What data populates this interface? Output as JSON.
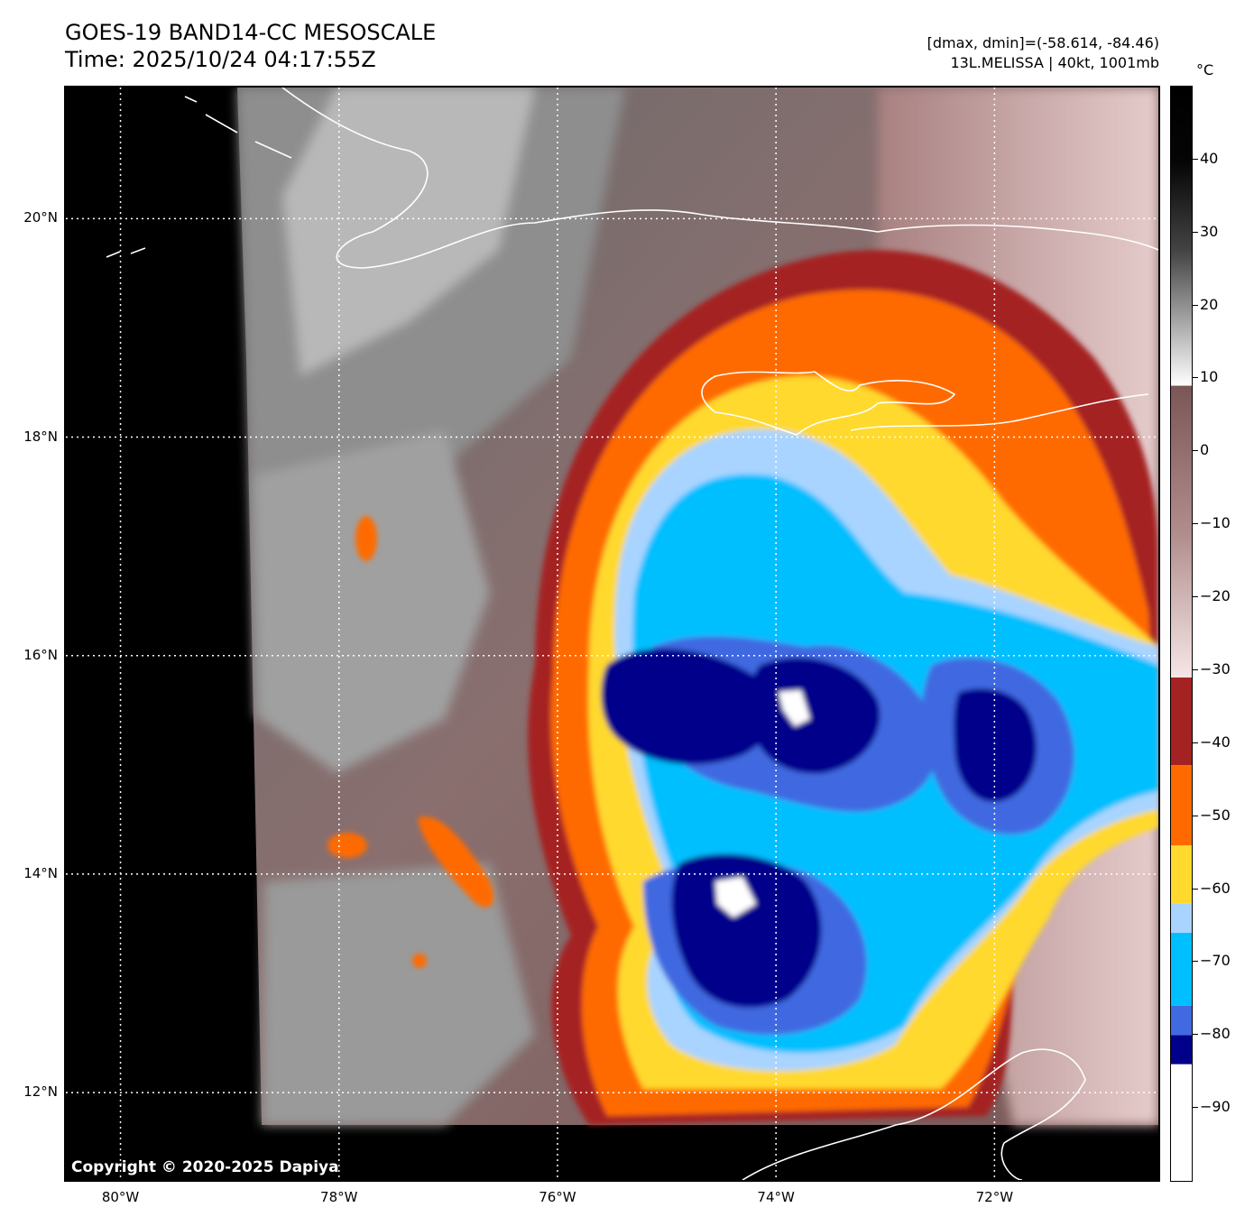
{
  "header": {
    "title_line1": "GOES-19 BAND14-CC MESOSCALE",
    "title_line2": "Time: 2025/10/24 04:17:55Z",
    "info_line1": "[dmax, dmin]=(-58.614, -84.46)",
    "info_line2": "13L.MELISSA | 40kt, 1001mb"
  },
  "map": {
    "lon_range": [
      -80.5,
      -70.5
    ],
    "lat_range": [
      11.2,
      21.2
    ],
    "lat_ticks": [
      {
        "value": 20,
        "label": "20°N"
      },
      {
        "value": 18,
        "label": "18°N"
      },
      {
        "value": 16,
        "label": "16°N"
      },
      {
        "value": 14,
        "label": "14°N"
      },
      {
        "value": 12,
        "label": "12°N"
      }
    ],
    "lon_ticks": [
      {
        "value": -80,
        "label": "80°W"
      },
      {
        "value": -78,
        "label": "78°W"
      },
      {
        "value": -76,
        "label": "76°W"
      },
      {
        "value": -74,
        "label": "74°W"
      },
      {
        "value": -72,
        "label": "72°W"
      }
    ],
    "gridlines": "dotted white",
    "copyright": "Copyright © 2020-2025 Dapiya"
  },
  "colorbar": {
    "unit": "°C",
    "range": [
      -100,
      50
    ],
    "ticks": [
      {
        "value": 40,
        "label": "40"
      },
      {
        "value": 30,
        "label": "30"
      },
      {
        "value": 20,
        "label": "20"
      },
      {
        "value": 10,
        "label": "10"
      },
      {
        "value": 0,
        "label": "0"
      },
      {
        "value": -10,
        "label": "−10"
      },
      {
        "value": -20,
        "label": "−20"
      },
      {
        "value": -30,
        "label": "−30"
      },
      {
        "value": -40,
        "label": "−40"
      },
      {
        "value": -50,
        "label": "−50"
      },
      {
        "value": -60,
        "label": "−60"
      },
      {
        "value": -70,
        "label": "−70"
      },
      {
        "value": -80,
        "label": "−80"
      },
      {
        "value": -90,
        "label": "−90"
      }
    ],
    "bands": [
      {
        "from": -100,
        "to": -84,
        "color": "#ffffff"
      },
      {
        "from": -84,
        "to": -80,
        "color": "#00008b"
      },
      {
        "from": -80,
        "to": -76,
        "color": "#4169e1"
      },
      {
        "from": -76,
        "to": -66,
        "color": "#00bfff"
      },
      {
        "from": -66,
        "to": -62,
        "color": "#a8d4ff"
      },
      {
        "from": -62,
        "to": -54,
        "color": "#ffd92e"
      },
      {
        "from": -54,
        "to": -43,
        "color": "#ff6a00"
      },
      {
        "from": -43,
        "to": -31,
        "color": "#a52222"
      }
    ]
  }
}
